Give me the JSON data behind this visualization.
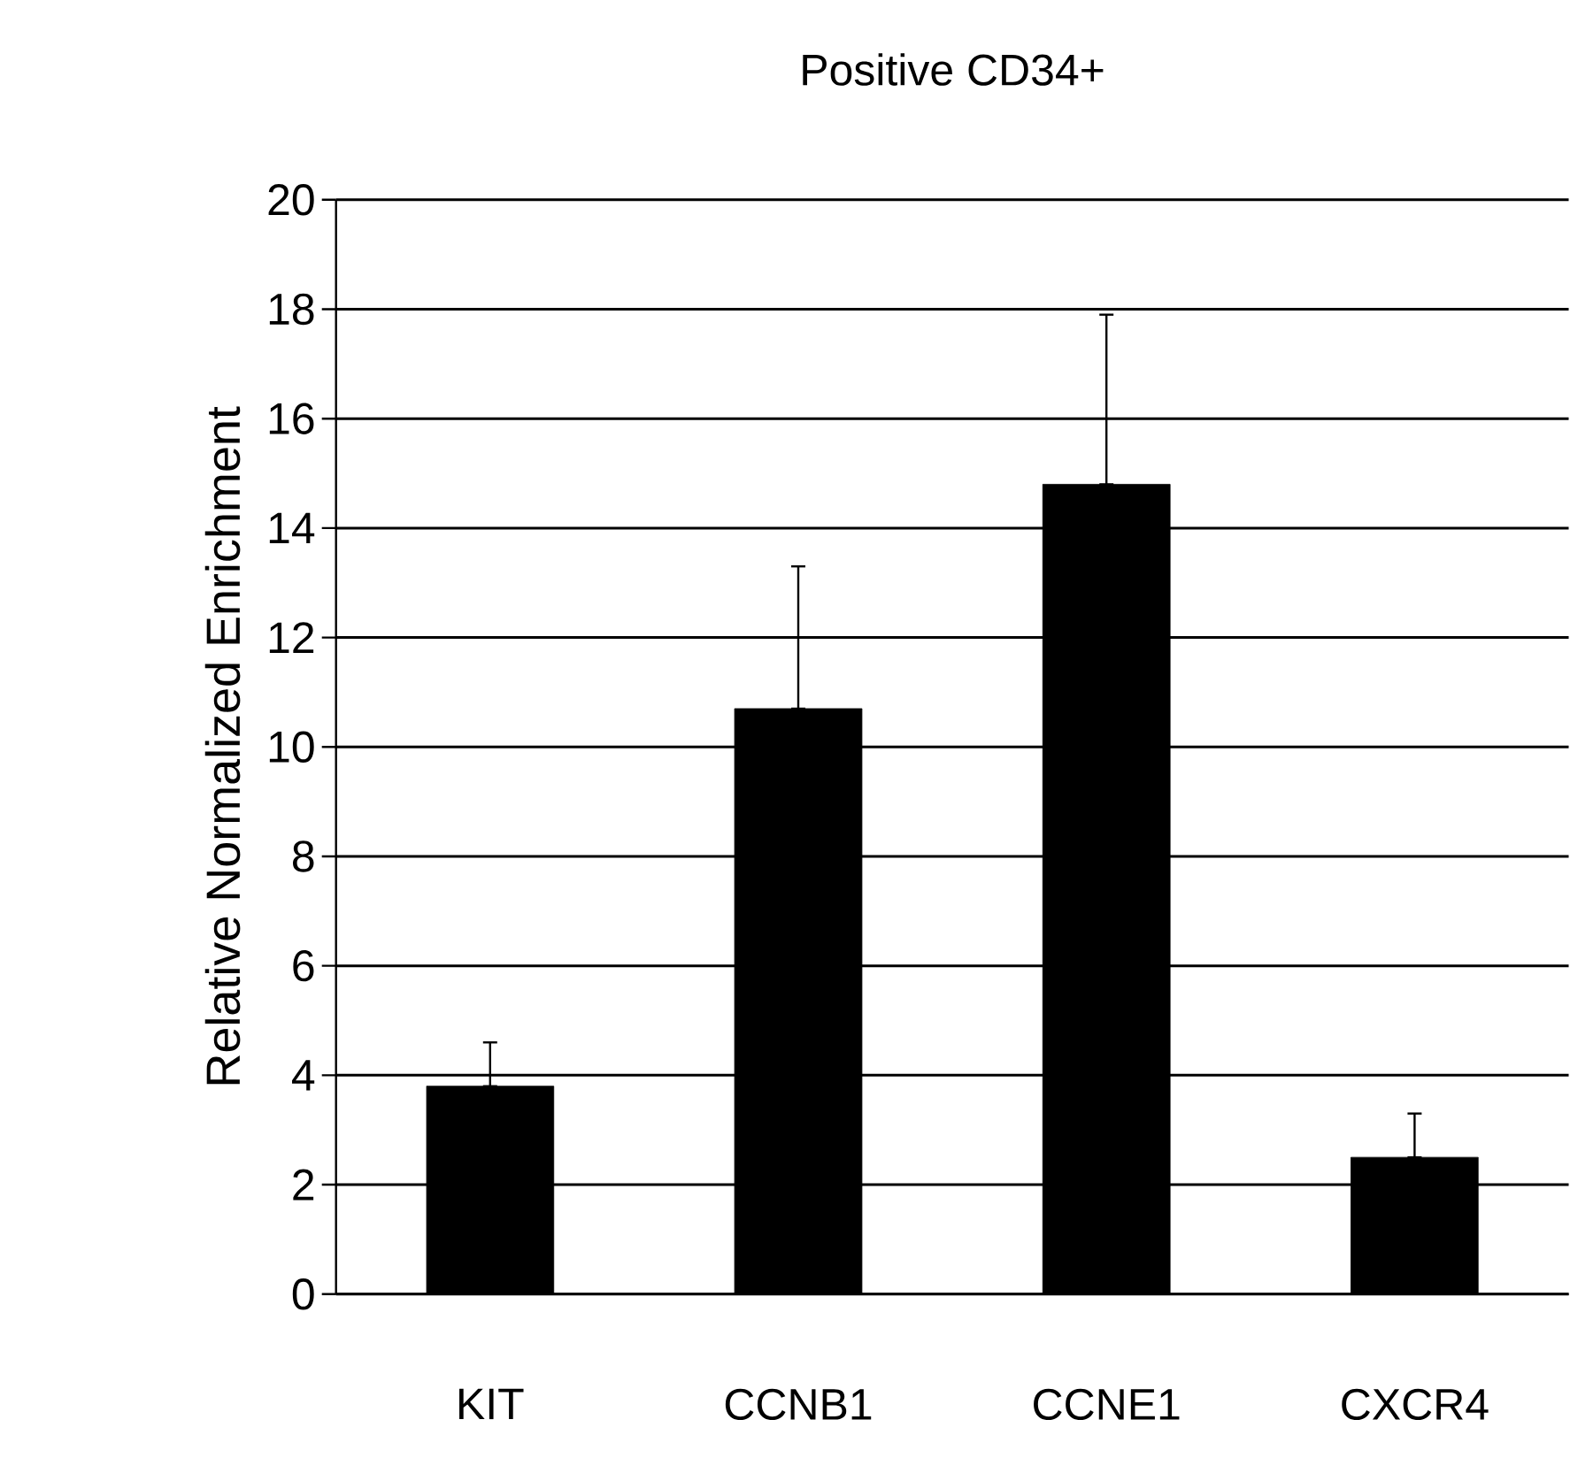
{
  "chart_data": {
    "type": "bar",
    "title": "Positive CD34+",
    "ylabel": "Relative Normalized Enrichment",
    "categories": [
      "KIT",
      "CCNB1",
      "CCNE1",
      "CXCR4"
    ],
    "values": [
      3.8,
      10.7,
      14.8,
      2.5
    ],
    "errors": [
      [
        3.8,
        4.6
      ],
      [
        10.7,
        13.3
      ],
      [
        14.8,
        17.9
      ],
      [
        2.5,
        3.3
      ]
    ],
    "color": "#000000",
    "ylim": [
      0,
      20
    ],
    "yticks": [
      0,
      2,
      4,
      6,
      8,
      10,
      12,
      14,
      16,
      18,
      20
    ],
    "grid": "y"
  }
}
